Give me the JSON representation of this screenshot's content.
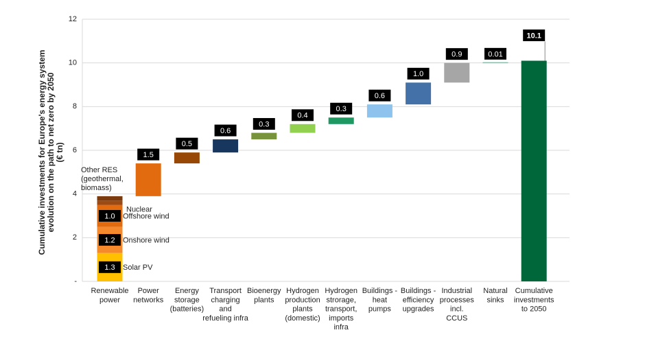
{
  "chart_data": {
    "type": "waterfall",
    "y_label": "Cumulative investments for Europe's energy system\nevolution on the path to net zero by 2050\n(€ tn)",
    "ylim": [
      0,
      12
    ],
    "yticks": [
      {
        "value": 0,
        "label": "-"
      },
      2,
      4,
      6,
      8,
      10,
      12
    ],
    "grid": true,
    "bars": [
      {
        "category": "Renewable\npower",
        "segments": [
          {
            "name": "Solar PV",
            "value": 1.3,
            "color": "#ffc000"
          },
          {
            "name": "Onshore wind",
            "value": 1.2,
            "color": "#f58a2c"
          },
          {
            "name": "Offshore wind",
            "value": 1.0,
            "value_label": "1.0",
            "color": "#e26b10"
          },
          {
            "name": "Nuclear",
            "value": 0.2,
            "color": "#9a4a12"
          },
          {
            "name": "Other RES\n(geothermal,\nbiomass)",
            "value": 0.2,
            "color": "#7a3a0e"
          }
        ]
      },
      {
        "category": "Power\nnetworks",
        "value": 1.5,
        "color": "#e26b10"
      },
      {
        "category": "Energy\nstorage\n(batteries)",
        "value": 0.5,
        "color": "#974806"
      },
      {
        "category": "Transport\ncharging\nand\nrefueling infra",
        "value": 0.6,
        "color": "#17375e"
      },
      {
        "category": "Bioenergy\nplants",
        "value": 0.3,
        "color": "#77933c"
      },
      {
        "category": "Hydrogen\nproduction\nplants\n(domestic)",
        "value": 0.4,
        "color": "#92d050"
      },
      {
        "category": "Hydrogen\nstrorage,\ntransport,\nimports\ninfra",
        "value": 0.3,
        "color": "#1e9962"
      },
      {
        "category": "Buildings -\nheat\npumps",
        "value": 0.6,
        "color": "#8dc3ec"
      },
      {
        "category": "Buildings -\nefficiency\nupgrades",
        "value": 1.0,
        "value_label": "1.0",
        "color": "#4472a8"
      },
      {
        "category": "Industrial\nprocesses\nincl.\nCCUS",
        "value": 0.9,
        "color": "#a6a6a6"
      },
      {
        "category": "Natural\nsinks",
        "value": 0.01,
        "color": "#66cdaa"
      },
      {
        "category": "Cumulative\ninvestments\nto 2050",
        "value": 10.1,
        "total": true,
        "color": "#00673a"
      }
    ]
  }
}
